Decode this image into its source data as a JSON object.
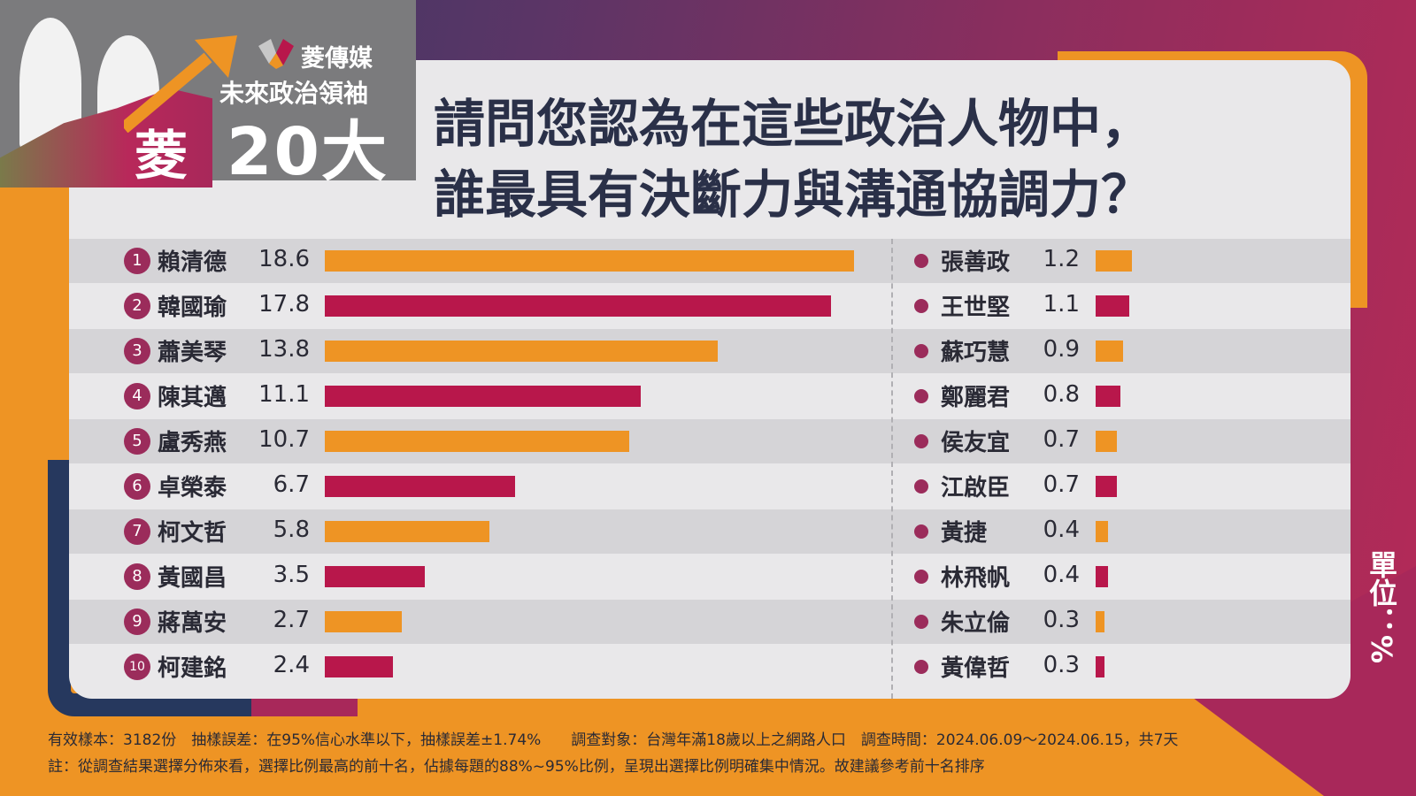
{
  "brand": {
    "logo_text": "菱",
    "media_name": "菱傳媒",
    "series_name": "未來政治領袖",
    "series_number": "20大"
  },
  "title_lines": [
    "請問您認為在這些政治人物中，",
    "誰最具有決斷力與溝通協調力？"
  ],
  "unit_label": "單位：%",
  "colors": {
    "orange": "#EE9424",
    "crimson": "#B8174B",
    "rank_circle": "#9B2C5B",
    "navy": "#26385E",
    "panel": "#E9E8EA"
  },
  "chart_data": {
    "type": "bar",
    "orientation": "horizontal",
    "unit": "%",
    "top10": [
      {
        "rank": "1",
        "name": "賴清德",
        "value": 18.6,
        "value_label": "18.6"
      },
      {
        "rank": "2",
        "name": "韓國瑜",
        "value": 17.8,
        "value_label": "17.8"
      },
      {
        "rank": "3",
        "name": "蕭美琴",
        "value": 13.8,
        "value_label": "13.8"
      },
      {
        "rank": "4",
        "name": "陳其邁",
        "value": 11.1,
        "value_label": "11.1"
      },
      {
        "rank": "5",
        "name": "盧秀燕",
        "value": 10.7,
        "value_label": "10.7"
      },
      {
        "rank": "6",
        "name": "卓榮泰",
        "value": 6.7,
        "value_label": "6.7"
      },
      {
        "rank": "7",
        "name": "柯文哲",
        "value": 5.8,
        "value_label": "5.8"
      },
      {
        "rank": "8",
        "name": "黃國昌",
        "value": 3.5,
        "value_label": "3.5"
      },
      {
        "rank": "9",
        "name": "蔣萬安",
        "value": 2.7,
        "value_label": "2.7"
      },
      {
        "rank": "10",
        "name": "柯建銘",
        "value": 2.4,
        "value_label": "2.4"
      }
    ],
    "others": [
      {
        "name": "張善政",
        "value": 1.2,
        "value_label": "1.2"
      },
      {
        "name": "王世堅",
        "value": 1.1,
        "value_label": "1.1"
      },
      {
        "name": "蘇巧慧",
        "value": 0.9,
        "value_label": "0.9"
      },
      {
        "name": "鄭麗君",
        "value": 0.8,
        "value_label": "0.8"
      },
      {
        "name": "侯友宜",
        "value": 0.7,
        "value_label": "0.7"
      },
      {
        "name": "江啟臣",
        "value": 0.7,
        "value_label": "0.7"
      },
      {
        "name": "黃捷",
        "value": 0.4,
        "value_label": "0.4"
      },
      {
        "name": "林飛帆",
        "value": 0.4,
        "value_label": "0.4"
      },
      {
        "name": "朱立倫",
        "value": 0.3,
        "value_label": "0.3"
      },
      {
        "name": "黃偉哲",
        "value": 0.3,
        "value_label": "0.3"
      }
    ]
  },
  "footer": {
    "line1": "有效樣本：3182份　抽樣誤差：在95%信心水準以下，抽樣誤差±1.74%　　調查對象：台灣年滿18歲以上之網路人口　調查時間：2024.06.09～2024.06.15，共7天",
    "line2": "註：從調查結果選擇分佈來看，選擇比例最高的前十名，佔據每題的88%~95%比例，呈現出選擇比例明確集中情況。故建議參考前十名排序"
  }
}
